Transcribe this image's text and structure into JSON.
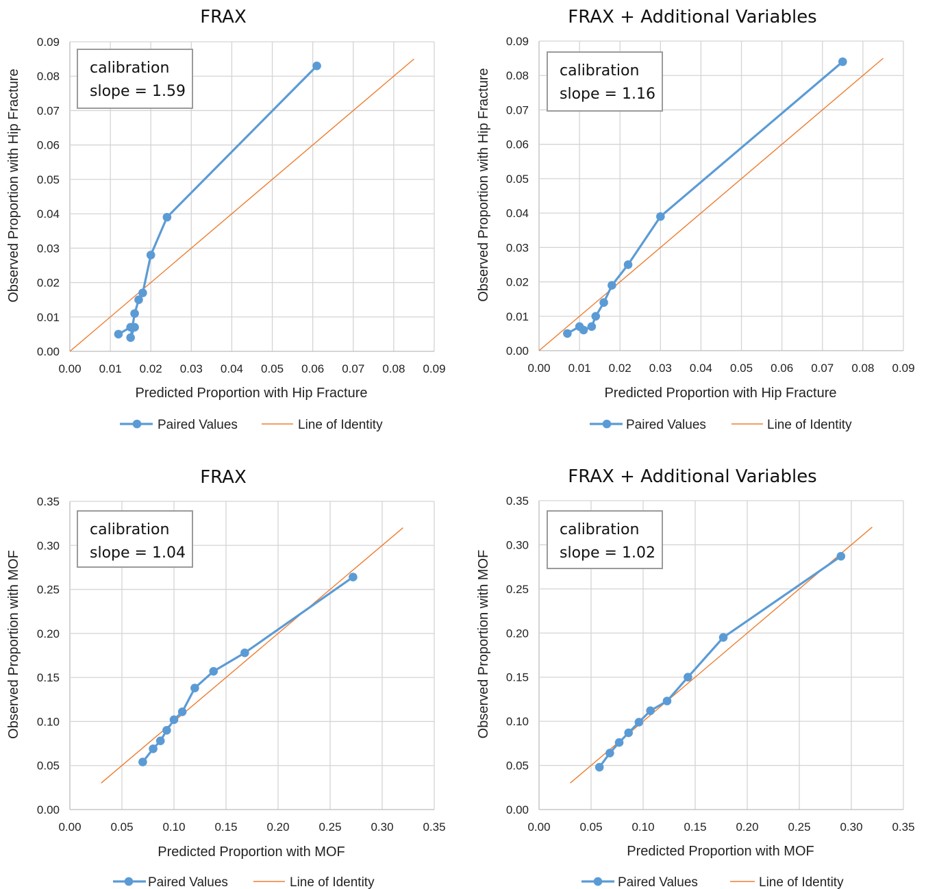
{
  "colors": {
    "paired": "#5B9BD5",
    "identity": "#ED7D31",
    "grid": "#d4d4d4"
  },
  "chart_data": [
    {
      "type": "scatter",
      "title": "FRAX",
      "xlabel": "Predicted Proportion with Hip Fracture",
      "ylabel": "Observed Proportion with Hip Fracture",
      "xlim": [
        0,
        0.09
      ],
      "ylim": [
        0,
        0.09
      ],
      "xticks": [
        "0.00",
        "0.01",
        "0.02",
        "0.03",
        "0.04",
        "0.05",
        "0.06",
        "0.07",
        "0.08",
        "0.09"
      ],
      "yticks": [
        "0.00",
        "0.01",
        "0.02",
        "0.03",
        "0.04",
        "0.05",
        "0.06",
        "0.07",
        "0.08",
        "0.09"
      ],
      "grid": true,
      "legend_position": "bottom",
      "annotation": [
        "calibration",
        "slope = 1.59"
      ],
      "series": [
        {
          "name": "Paired Values",
          "style": "line-markers",
          "x": [
            0.012,
            0.015,
            0.016,
            0.015,
            0.016,
            0.017,
            0.018,
            0.02,
            0.024,
            0.061
          ],
          "y": [
            0.005,
            0.007,
            0.007,
            0.004,
            0.011,
            0.015,
            0.017,
            0.028,
            0.039,
            0.083
          ]
        },
        {
          "name": "Line of Identity",
          "style": "line",
          "x": [
            0.0,
            0.085
          ],
          "y": [
            0.0,
            0.085
          ]
        }
      ]
    },
    {
      "type": "scatter",
      "title": "FRAX + Additional Variables",
      "xlabel": "Predicted Proportion with Hip Fracture",
      "ylabel": "Observed Proportion with Hip Fracture",
      "xlim": [
        0,
        0.09
      ],
      "ylim": [
        0,
        0.09
      ],
      "xticks": [
        "0.00",
        "0.01",
        "0.02",
        "0.03",
        "0.04",
        "0.05",
        "0.06",
        "0.07",
        "0.08",
        "0.09"
      ],
      "yticks": [
        "0.00",
        "0.01",
        "0.02",
        "0.03",
        "0.04",
        "0.05",
        "0.06",
        "0.07",
        "0.08",
        "0.09"
      ],
      "grid": true,
      "legend_position": "bottom",
      "annotation": [
        "calibration",
        "slope = 1.16"
      ],
      "series": [
        {
          "name": "Paired Values",
          "style": "line-markers",
          "x": [
            0.007,
            0.01,
            0.011,
            0.013,
            0.014,
            0.016,
            0.018,
            0.022,
            0.03,
            0.075
          ],
          "y": [
            0.005,
            0.007,
            0.006,
            0.007,
            0.01,
            0.014,
            0.019,
            0.025,
            0.039,
            0.084
          ]
        },
        {
          "name": "Line of Identity",
          "style": "line",
          "x": [
            0.0,
            0.085
          ],
          "y": [
            0.0,
            0.085
          ]
        }
      ]
    },
    {
      "type": "scatter",
      "title": "FRAX",
      "xlabel": "Predicted Proportion with MOF",
      "ylabel": "Observed Proportion with MOF",
      "xlim": [
        0,
        0.35
      ],
      "ylim": [
        0,
        0.35
      ],
      "xticks": [
        "0.00",
        "0.05",
        "0.10",
        "0.15",
        "0.20",
        "0.25",
        "0.30",
        "0.35"
      ],
      "yticks": [
        "0.00",
        "0.05",
        "0.10",
        "0.15",
        "0.20",
        "0.25",
        "0.30",
        "0.35"
      ],
      "grid": true,
      "legend_position": "bottom",
      "annotation": [
        "calibration",
        "slope = 1.04"
      ],
      "series": [
        {
          "name": "Paired Values",
          "style": "line-markers",
          "x": [
            0.07,
            0.08,
            0.087,
            0.093,
            0.1,
            0.108,
            0.12,
            0.138,
            0.168,
            0.272
          ],
          "y": [
            0.054,
            0.069,
            0.078,
            0.09,
            0.102,
            0.111,
            0.138,
            0.157,
            0.178,
            0.264
          ]
        },
        {
          "name": "Line of Identity",
          "style": "line",
          "x": [
            0.03,
            0.32
          ],
          "y": [
            0.03,
            0.32
          ]
        }
      ]
    },
    {
      "type": "scatter",
      "title": "FRAX + Additional Variables",
      "xlabel": "Predicted Proportion with MOF",
      "ylabel": "Observed Proportion with MOF",
      "xlim": [
        0,
        0.35
      ],
      "ylim": [
        0,
        0.35
      ],
      "xticks": [
        "0.00",
        "0.05",
        "0.10",
        "0.15",
        "0.20",
        "0.25",
        "0.30",
        "0.35"
      ],
      "yticks": [
        "0.00",
        "0.05",
        "0.10",
        "0.15",
        "0.20",
        "0.25",
        "0.30",
        "0.35"
      ],
      "grid": true,
      "legend_position": "bottom",
      "annotation": [
        "calibration",
        "slope = 1.02"
      ],
      "series": [
        {
          "name": "Paired Values",
          "style": "line-markers",
          "x": [
            0.058,
            0.068,
            0.077,
            0.086,
            0.096,
            0.107,
            0.123,
            0.143,
            0.177,
            0.29
          ],
          "y": [
            0.048,
            0.064,
            0.076,
            0.087,
            0.099,
            0.112,
            0.123,
            0.15,
            0.195,
            0.287
          ]
        },
        {
          "name": "Line of Identity",
          "style": "line",
          "x": [
            0.03,
            0.32
          ],
          "y": [
            0.03,
            0.32
          ]
        }
      ]
    }
  ]
}
